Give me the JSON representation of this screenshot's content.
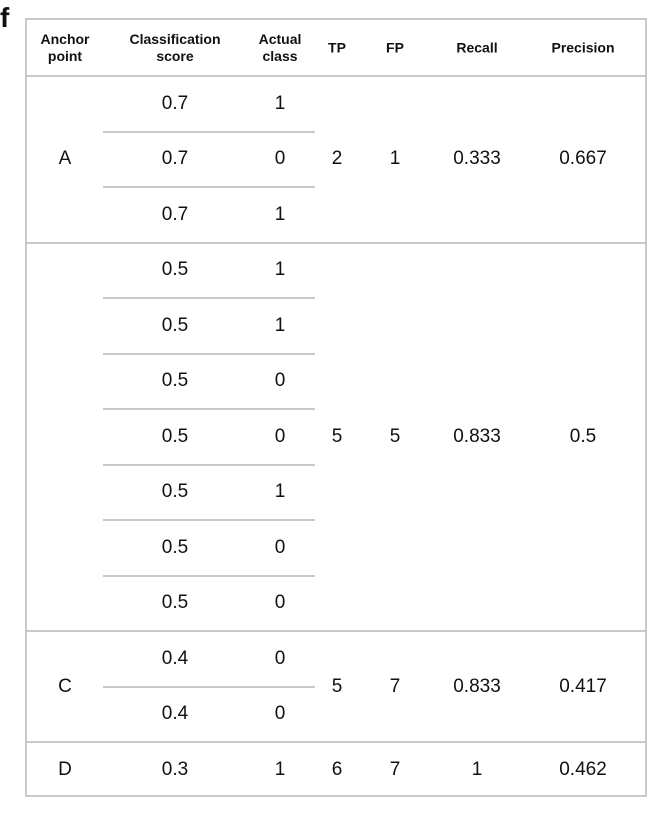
{
  "panel_label": "f",
  "headers": {
    "anchor": [
      "Anchor",
      "point"
    ],
    "score": [
      "Classification",
      "score"
    ],
    "actual": [
      "Actual",
      "class"
    ],
    "tp": "TP",
    "fp": "FP",
    "recall": "Recall",
    "precision": "Precision"
  },
  "groups": [
    {
      "anchor": "A",
      "tp": "2",
      "fp": "1",
      "recall": "0.333",
      "precision": "0.667",
      "rows": [
        {
          "score": "0.7",
          "actual": "1"
        },
        {
          "score": "0.7",
          "actual": "0"
        },
        {
          "score": "0.7",
          "actual": "1"
        }
      ]
    },
    {
      "anchor": "",
      "tp": "5",
      "fp": "5",
      "recall": "0.833",
      "precision": "0.5",
      "rows": [
        {
          "score": "0.5",
          "actual": "1"
        },
        {
          "score": "0.5",
          "actual": "1"
        },
        {
          "score": "0.5",
          "actual": "0"
        },
        {
          "score": "0.5",
          "actual": "0"
        },
        {
          "score": "0.5",
          "actual": "1"
        },
        {
          "score": "0.5",
          "actual": "0"
        },
        {
          "score": "0.5",
          "actual": "0"
        }
      ]
    },
    {
      "anchor": "C",
      "tp": "5",
      "fp": "7",
      "recall": "0.833",
      "precision": "0.417",
      "rows": [
        {
          "score": "0.4",
          "actual": "0"
        },
        {
          "score": "0.4",
          "actual": "0"
        }
      ]
    },
    {
      "anchor": "D",
      "tp": "6",
      "fp": "7",
      "recall": "1",
      "precision": "0.462",
      "rows": [
        {
          "score": "0.3",
          "actual": "1"
        }
      ]
    }
  ]
}
